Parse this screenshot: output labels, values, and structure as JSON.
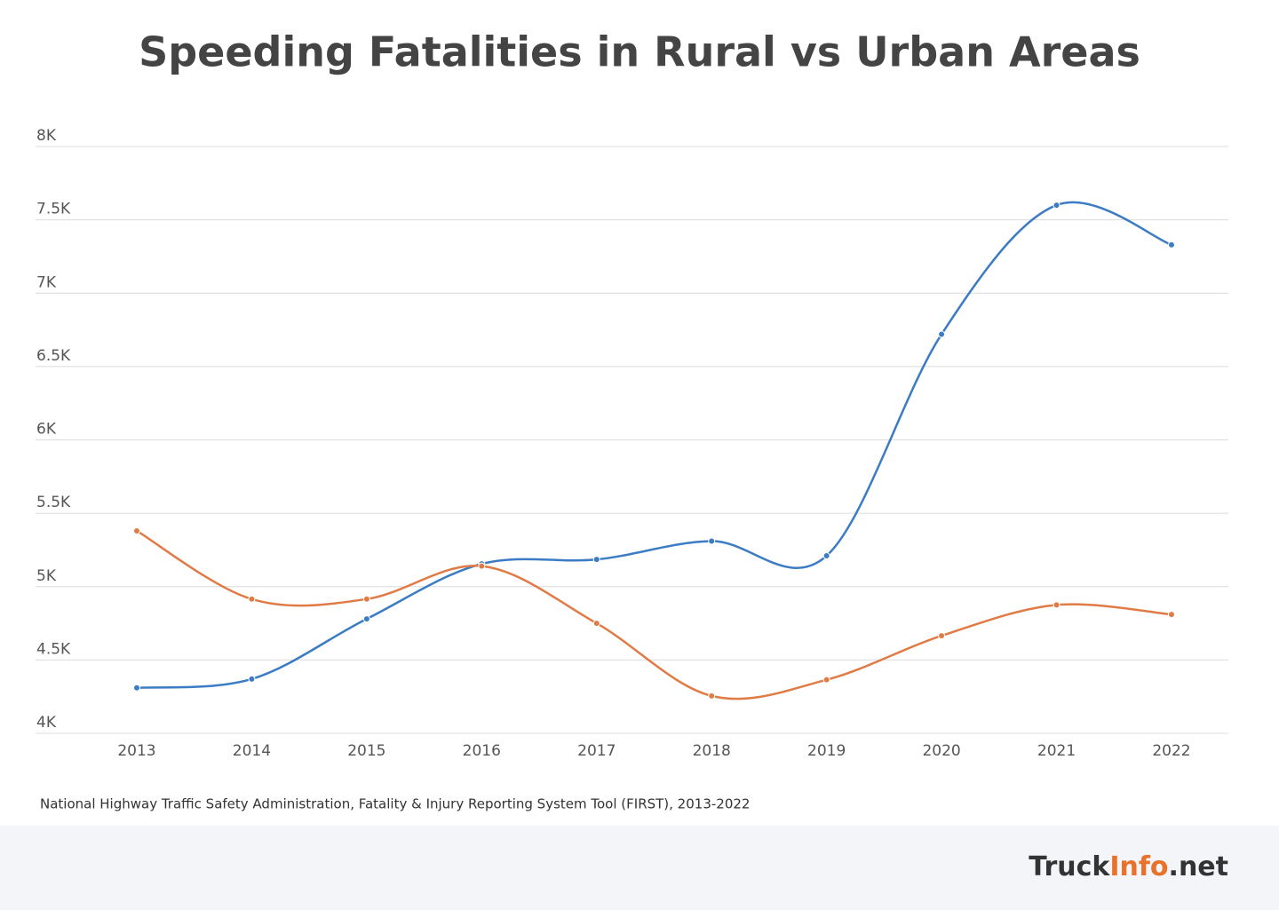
{
  "chart_data": {
    "type": "line",
    "title": "Speeding Fatalities in Rural vs Urban Areas",
    "categories": [
      "2013",
      "2014",
      "2015",
      "2016",
      "2017",
      "2018",
      "2019",
      "2020",
      "2021",
      "2022"
    ],
    "series": [
      {
        "color": "#3b7cc4",
        "values": [
          4310,
          4370,
          4780,
          5155,
          5185,
          5310,
          5210,
          6720,
          7600,
          7330
        ]
      },
      {
        "color": "#e07b45",
        "values": [
          5380,
          4915,
          4915,
          5140,
          4750,
          4255,
          4365,
          4665,
          4875,
          4810
        ]
      }
    ],
    "ylim": [
      4000,
      8000
    ],
    "yticks": [
      {
        "value": 4000,
        "label": "4K"
      },
      {
        "value": 4500,
        "label": "4.5K"
      },
      {
        "value": 5000,
        "label": "5K"
      },
      {
        "value": 5500,
        "label": "5.5K"
      },
      {
        "value": 6000,
        "label": "6K"
      },
      {
        "value": 6500,
        "label": "6.5K"
      },
      {
        "value": 7000,
        "label": "7K"
      },
      {
        "value": 7500,
        "label": "7.5K"
      },
      {
        "value": 8000,
        "label": "8K"
      }
    ],
    "grid": true,
    "source": "National Highway Traffic Safety Administration, Fatality & Injury Reporting System Tool (FIRST), 2013-2022"
  },
  "footer": {
    "brand": [
      "Truck",
      "Info",
      ".net"
    ]
  }
}
